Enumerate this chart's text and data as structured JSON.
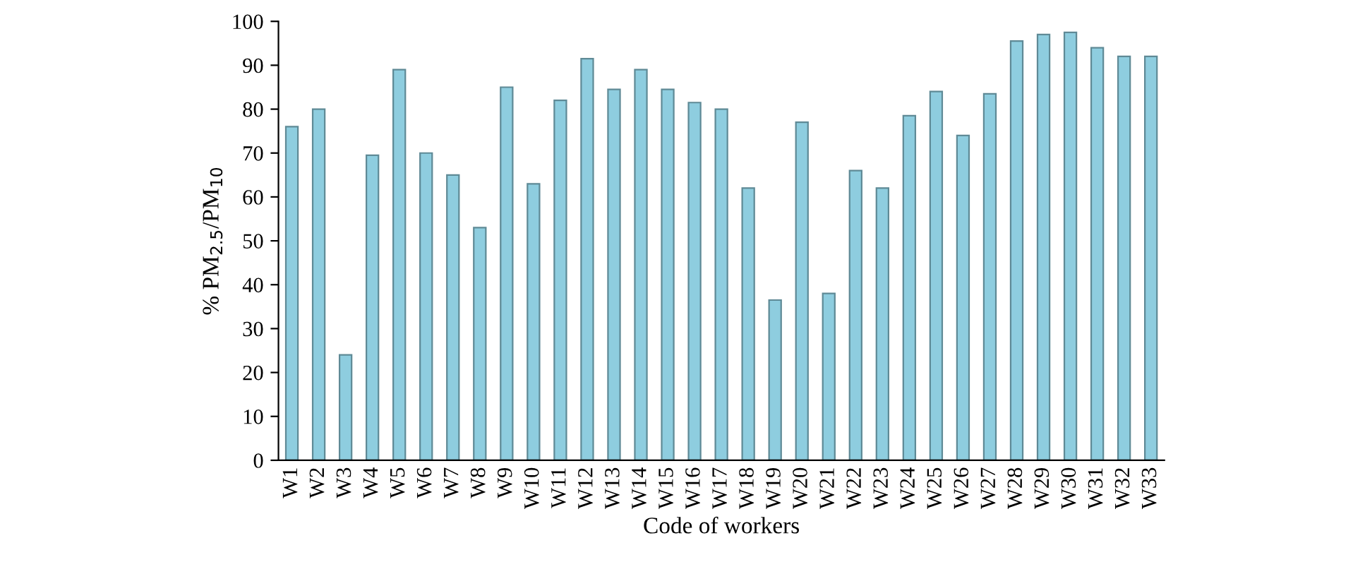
{
  "chart_data": {
    "type": "bar",
    "xlabel": "Code of workers",
    "ylabel": "% PM$_{2.5}$/PM$_{10}$",
    "categories": [
      "W1",
      "W2",
      "W3",
      "W4",
      "W5",
      "W6",
      "W7",
      "W8",
      "W9",
      "W10",
      "W11",
      "W12",
      "W13",
      "W14",
      "W15",
      "W16",
      "W17",
      "W18",
      "W19",
      "W20",
      "W21",
      "W22",
      "W23",
      "W24",
      "W25",
      "W26",
      "W27",
      "W28",
      "W29",
      "W30",
      "W31",
      "W32",
      "W33"
    ],
    "values": [
      76,
      80,
      24,
      69.5,
      89,
      70,
      65,
      53,
      85,
      63,
      82,
      91.5,
      84.5,
      89,
      84.5,
      81.5,
      80,
      62,
      36.5,
      77,
      38,
      66,
      62,
      78.5,
      84,
      74,
      83.5,
      95.5,
      97,
      97.5,
      94,
      92,
      92
    ],
    "color": "#8ecddf",
    "ylim": [
      0,
      100
    ],
    "yticks": [
      0,
      10,
      20,
      30,
      40,
      50,
      60,
      70,
      80,
      90,
      100
    ],
    "grid": false,
    "legend": false
  }
}
